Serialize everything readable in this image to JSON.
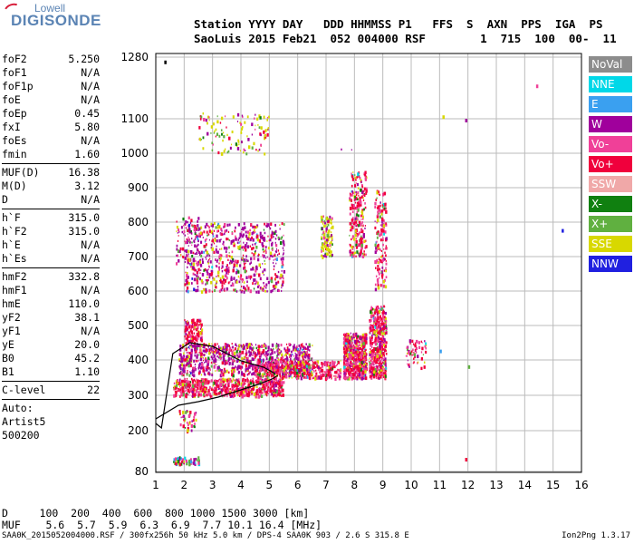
{
  "logo": {
    "top": "Lowell",
    "main": "DIGISONDE"
  },
  "header": {
    "line1": "Station YYYY DAY   DDD HHMMSS P1   FFS  S  AXN  PPS  IGA  PS",
    "line2": "SaoLuis 2015 Feb21  052 004000 RSF        1  715  100  00-  11"
  },
  "params": {
    "group1": [
      {
        "k": "foF2",
        "v": "5.250"
      },
      {
        "k": "foF1",
        "v": "N/A"
      },
      {
        "k": "foF1p",
        "v": "N/A"
      },
      {
        "k": "foE",
        "v": "N/A"
      },
      {
        "k": "foEp",
        "v": "0.45"
      },
      {
        "k": "fxI",
        "v": "5.80"
      },
      {
        "k": "foEs",
        "v": "N/A"
      },
      {
        "k": "fmin",
        "v": "1.60"
      }
    ],
    "group2": [
      {
        "k": "MUF(D)",
        "v": "16.38"
      },
      {
        "k": "M(D)",
        "v": "3.12"
      },
      {
        "k": "D",
        "v": "N/A"
      }
    ],
    "group3": [
      {
        "k": "h`F",
        "v": "315.0"
      },
      {
        "k": "h`F2",
        "v": "315.0"
      },
      {
        "k": "h`E",
        "v": "N/A"
      },
      {
        "k": "h`Es",
        "v": "N/A"
      }
    ],
    "group4": [
      {
        "k": "hmF2",
        "v": "332.8"
      },
      {
        "k": "hmF1",
        "v": "N/A"
      },
      {
        "k": "hmE",
        "v": "110.0"
      },
      {
        "k": "yF2",
        "v": "38.1"
      },
      {
        "k": "yF1",
        "v": "N/A"
      },
      {
        "k": "yE",
        "v": "20.0"
      },
      {
        "k": "B0",
        "v": "45.2"
      },
      {
        "k": "B1",
        "v": "1.10"
      }
    ],
    "clevel": {
      "k": "C-level",
      "v": "22"
    },
    "auto": [
      "Auto:",
      "Artist5",
      "500200"
    ]
  },
  "legend": [
    {
      "label": "NoVal",
      "color": "#8c8c8c"
    },
    {
      "label": "NNE",
      "color": "#00d8e8"
    },
    {
      "label": "E",
      "color": "#3aa0f0"
    },
    {
      "label": "W",
      "color": "#a0009c"
    },
    {
      "label": "Vo-",
      "color": "#f04098"
    },
    {
      "label": "Vo+",
      "color": "#f0003c"
    },
    {
      "label": "SSW",
      "color": "#f0a8a8"
    },
    {
      "label": "X-",
      "color": "#108010"
    },
    {
      "label": "X+",
      "color": "#60b040"
    },
    {
      "label": "SSE",
      "color": "#d8d800"
    },
    {
      "label": "NNW",
      "color": "#2020e0"
    }
  ],
  "chart_data": {
    "type": "scatter",
    "title": "",
    "xlabel": "",
    "ylabel": "",
    "xlim": [
      1,
      16
    ],
    "ylim": [
      80,
      1280
    ],
    "x_ticks": [
      "1",
      "2",
      "3",
      "4",
      "5",
      "6",
      "7",
      "8",
      "9",
      "10",
      "11",
      "12",
      "13",
      "14",
      "15",
      "16"
    ],
    "y_ticks": [
      "80",
      "200",
      "300",
      "400",
      "500",
      "600",
      "700",
      "800",
      "900",
      "1000",
      "1100",
      "1280"
    ],
    "y_scale": "ionogram (non-linear)",
    "grid": true,
    "legend_position": "right",
    "series_colors": [
      "#a0009c",
      "#f0003c",
      "#f04098",
      "#d8d800",
      "#60b040",
      "#108010",
      "#3aa0f0",
      "#00d8e8",
      "#2020e0",
      "#f0a8a8"
    ],
    "profile_curve": [
      [
        5.2,
        335
      ],
      [
        4,
        330
      ],
      [
        3,
        322
      ],
      [
        2,
        310
      ],
      [
        1,
        265
      ]
    ]
  },
  "bottom": {
    "d_line": "D     100  200  400  600  800 1000 1500 3000 [km]",
    "muf_line": "MUF    5.6  5.7  5.9  6.3  6.9  7.7 10.1 16.4 [MHz]"
  },
  "footer": {
    "left": "SAA0K_2015052004000.RSF / 300fx256h 50 kHz 5.0 km / DPS-4 SAA0K 903 / 2.6 S 315.8 E",
    "right": "Ion2Png 1.3.17"
  }
}
